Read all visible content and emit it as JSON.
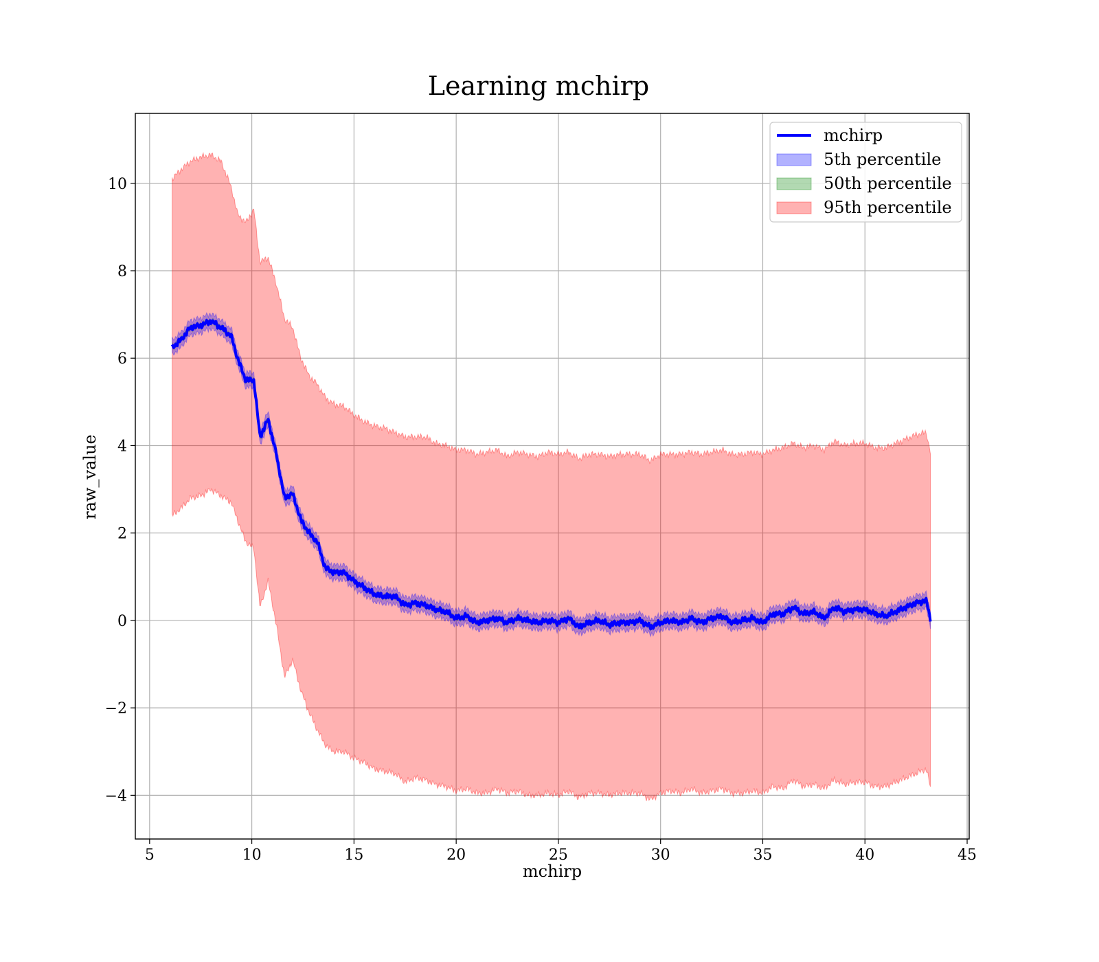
{
  "chart_data": {
    "type": "line",
    "title": "Learning mchirp",
    "xlabel": "mchirp",
    "ylabel": "raw_value",
    "xlim": [
      4.3,
      45.1
    ],
    "ylim": [
      -5.0,
      11.6
    ],
    "xticks": [
      5,
      10,
      15,
      20,
      25,
      30,
      35,
      40,
      45
    ],
    "yticks": [
      -4,
      -2,
      0,
      2,
      4,
      6,
      8,
      10
    ],
    "xtick_labels": [
      "5",
      "10",
      "15",
      "20",
      "25",
      "30",
      "35",
      "40",
      "45"
    ],
    "ytick_labels": [
      "−4",
      "−2",
      "0",
      "2",
      "4",
      "6",
      "8",
      "10"
    ],
    "grid": true,
    "legend_position": "top-right",
    "legend": [
      {
        "label": "mchirp",
        "kind": "line",
        "color": "#0000ff"
      },
      {
        "label": "5th percentile",
        "kind": "band",
        "color": "#0000ff"
      },
      {
        "label": "50th percentile",
        "kind": "band",
        "color": "#008000"
      },
      {
        "label": "95th percentile",
        "kind": "band",
        "color": "#ff0000"
      }
    ],
    "x": [
      6.1,
      6.5,
      7.0,
      7.5,
      8.0,
      8.5,
      9.0,
      9.3,
      9.7,
      10.1,
      10.4,
      10.8,
      11.2,
      11.6,
      12.0,
      12.4,
      12.8,
      13.2,
      13.6,
      14.0,
      14.5,
      15.0,
      15.5,
      16.0,
      16.5,
      17.0,
      17.5,
      18.0,
      18.5,
      19.0,
      19.5,
      20.0,
      20.5,
      21.0,
      21.5,
      22.0,
      22.5,
      23.0,
      23.5,
      24.0,
      24.5,
      25.0,
      25.5,
      26.0,
      26.5,
      27.0,
      27.5,
      28.0,
      28.5,
      29.0,
      29.5,
      30.0,
      30.5,
      31.0,
      31.5,
      32.0,
      32.5,
      33.0,
      33.5,
      34.0,
      34.5,
      35.0,
      35.5,
      36.0,
      36.5,
      37.0,
      37.5,
      38.0,
      38.5,
      39.0,
      39.5,
      40.0,
      40.5,
      41.0,
      41.5,
      42.0,
      42.5,
      43.0,
      43.2
    ],
    "series": [
      {
        "name": "mchirp",
        "color": "#0000ff",
        "values": [
          6.25,
          6.4,
          6.7,
          6.75,
          6.85,
          6.7,
          6.5,
          6.0,
          5.5,
          5.5,
          4.2,
          4.6,
          3.8,
          2.8,
          2.9,
          2.3,
          2.0,
          1.8,
          1.2,
          1.1,
          1.1,
          0.9,
          0.75,
          0.6,
          0.55,
          0.55,
          0.35,
          0.4,
          0.35,
          0.25,
          0.2,
          0.05,
          0.1,
          -0.05,
          0.0,
          0.05,
          -0.05,
          0.05,
          0.0,
          -0.05,
          0.0,
          -0.05,
          0.05,
          -0.15,
          -0.05,
          0.0,
          -0.1,
          -0.05,
          -0.05,
          0.0,
          -0.15,
          -0.05,
          0.0,
          -0.05,
          0.05,
          -0.05,
          0.05,
          0.1,
          -0.05,
          0.0,
          0.05,
          -0.05,
          0.15,
          0.15,
          0.3,
          0.15,
          0.2,
          0.05,
          0.3,
          0.2,
          0.25,
          0.25,
          0.15,
          0.1,
          0.2,
          0.3,
          0.4,
          0.45,
          0.05
        ]
      },
      {
        "name": "95th percentile",
        "color": "#ff0000",
        "upper": [
          10.1,
          10.3,
          10.5,
          10.6,
          10.65,
          10.5,
          9.9,
          9.3,
          9.1,
          9.4,
          8.2,
          8.3,
          7.7,
          6.9,
          6.7,
          6.0,
          5.6,
          5.4,
          5.1,
          4.95,
          4.9,
          4.7,
          4.55,
          4.45,
          4.4,
          4.3,
          4.2,
          4.2,
          4.2,
          4.05,
          4.0,
          3.9,
          3.9,
          3.8,
          3.85,
          3.9,
          3.75,
          3.85,
          3.8,
          3.75,
          3.85,
          3.8,
          3.85,
          3.7,
          3.8,
          3.8,
          3.75,
          3.8,
          3.8,
          3.8,
          3.65,
          3.8,
          3.8,
          3.8,
          3.85,
          3.8,
          3.85,
          3.9,
          3.8,
          3.8,
          3.85,
          3.8,
          3.9,
          3.95,
          4.05,
          3.95,
          4.0,
          3.9,
          4.1,
          4.0,
          4.05,
          4.05,
          3.95,
          3.95,
          4.05,
          4.15,
          4.25,
          4.3,
          3.85
        ],
        "lower": [
          2.4,
          2.55,
          2.8,
          2.85,
          3.0,
          2.85,
          2.7,
          2.3,
          1.8,
          1.65,
          0.3,
          0.9,
          -0.1,
          -1.3,
          -0.9,
          -1.6,
          -2.1,
          -2.5,
          -2.85,
          -3.0,
          -3.0,
          -3.15,
          -3.25,
          -3.4,
          -3.45,
          -3.5,
          -3.7,
          -3.6,
          -3.65,
          -3.75,
          -3.8,
          -3.9,
          -3.85,
          -3.95,
          -3.95,
          -3.85,
          -3.95,
          -3.9,
          -4.0,
          -4.0,
          -3.95,
          -4.0,
          -3.9,
          -4.05,
          -3.95,
          -3.95,
          -4.0,
          -3.95,
          -3.95,
          -3.95,
          -4.1,
          -3.95,
          -3.9,
          -3.95,
          -3.85,
          -3.95,
          -3.9,
          -3.85,
          -3.95,
          -3.95,
          -3.9,
          -3.95,
          -3.8,
          -3.85,
          -3.65,
          -3.8,
          -3.75,
          -3.85,
          -3.65,
          -3.75,
          -3.7,
          -3.7,
          -3.8,
          -3.8,
          -3.7,
          -3.6,
          -3.5,
          -3.4,
          -3.8
        ]
      },
      {
        "name": "5th percentile",
        "color": "#0000ff",
        "half_width": 0.17
      },
      {
        "name": "50th percentile",
        "color": "#008000",
        "half_width": 0.06
      }
    ]
  }
}
